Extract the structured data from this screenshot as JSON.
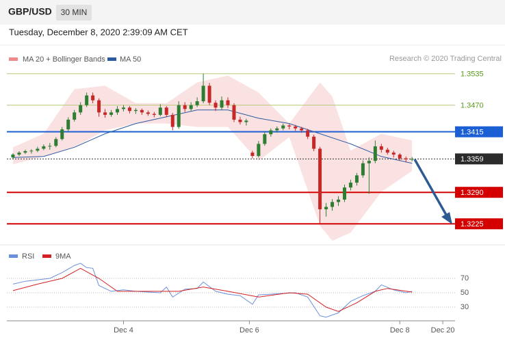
{
  "header": {
    "symbol": "GBP/USD",
    "timeframe": "30 MIN"
  },
  "timestamp": "Tuesday, December 8, 2020 2:39:09 AM CET",
  "credit": "Research © 2020 Trading Central",
  "chart_data": [
    {
      "type": "candlestick",
      "xlim": [
        -1,
        72
      ],
      "ylim": [
        1.319,
        1.356
      ],
      "up_color": "#2e7d32",
      "down_color": "#c62828",
      "candles": [
        [
          1.3362,
          1.3371,
          1.3359,
          1.3368
        ],
        [
          1.3368,
          1.3375,
          1.3365,
          1.3372
        ],
        [
          1.3372,
          1.3378,
          1.3369,
          1.3375
        ],
        [
          1.3375,
          1.3379,
          1.337,
          1.3376
        ],
        [
          1.3376,
          1.3384,
          1.3373,
          1.338
        ],
        [
          1.338,
          1.3389,
          1.3377,
          1.3385
        ],
        [
          1.3385,
          1.3392,
          1.3378,
          1.3386
        ],
        [
          1.3386,
          1.3404,
          1.3383,
          1.34
        ],
        [
          1.34,
          1.3425,
          1.3397,
          1.342
        ],
        [
          1.342,
          1.3445,
          1.3416,
          1.344
        ],
        [
          1.344,
          1.346,
          1.3436,
          1.3455
        ],
        [
          1.3455,
          1.3476,
          1.345,
          1.347
        ],
        [
          1.347,
          1.3496,
          1.3466,
          1.349
        ],
        [
          1.349,
          1.3496,
          1.3474,
          1.348
        ],
        [
          1.348,
          1.3484,
          1.3446,
          1.3455
        ],
        [
          1.3455,
          1.3462,
          1.3444,
          1.345
        ],
        [
          1.345,
          1.346,
          1.3446,
          1.3455
        ],
        [
          1.3455,
          1.3468,
          1.345,
          1.3462
        ],
        [
          1.3462,
          1.347,
          1.3457,
          1.3465
        ],
        [
          1.3465,
          1.3468,
          1.3453,
          1.3458
        ],
        [
          1.3458,
          1.3464,
          1.3452,
          1.346
        ],
        [
          1.346,
          1.3463,
          1.345,
          1.3455
        ],
        [
          1.3455,
          1.3459,
          1.3448,
          1.3452
        ],
        [
          1.3452,
          1.3456,
          1.3445,
          1.345
        ],
        [
          1.345,
          1.3472,
          1.3447,
          1.3465
        ],
        [
          1.3465,
          1.3468,
          1.3445,
          1.345
        ],
        [
          1.345,
          1.3454,
          1.3418,
          1.3425
        ],
        [
          1.3425,
          1.3478,
          1.3421,
          1.347
        ],
        [
          1.347,
          1.3476,
          1.3456,
          1.3462
        ],
        [
          1.3462,
          1.3476,
          1.3458,
          1.347
        ],
        [
          1.347,
          1.3486,
          1.3466,
          1.3478
        ],
        [
          1.3478,
          1.3535,
          1.3474,
          1.351
        ],
        [
          1.351,
          1.3516,
          1.347,
          1.3475
        ],
        [
          1.3475,
          1.348,
          1.3458,
          1.3465
        ],
        [
          1.3465,
          1.3488,
          1.346,
          1.348
        ],
        [
          1.348,
          1.3486,
          1.3464,
          1.347
        ],
        [
          1.347,
          1.3474,
          1.3435,
          1.344
        ],
        [
          1.344,
          1.3446,
          1.343,
          1.3435
        ],
        [
          1.3435,
          1.3442,
          1.3428,
          1.3438
        ],
        [
          1.3372,
          1.3376,
          1.336,
          1.3365
        ],
        [
          1.3365,
          1.3396,
          1.3362,
          1.339
        ],
        [
          1.339,
          1.3414,
          1.3386,
          1.341
        ],
        [
          1.341,
          1.3422,
          1.3405,
          1.3418
        ],
        [
          1.3418,
          1.3426,
          1.3413,
          1.3422
        ],
        [
          1.3422,
          1.3432,
          1.3418,
          1.3428
        ],
        [
          1.3428,
          1.3431,
          1.342,
          1.3426
        ],
        [
          1.3426,
          1.3429,
          1.3417,
          1.3422
        ],
        [
          1.3422,
          1.3425,
          1.3413,
          1.3418
        ],
        [
          1.3418,
          1.3421,
          1.34,
          1.3405
        ],
        [
          1.3405,
          1.3409,
          1.3375,
          1.338
        ],
        [
          1.338,
          1.3384,
          1.3225,
          1.3255
        ],
        [
          1.3255,
          1.3268,
          1.324,
          1.326
        ],
        [
          1.326,
          1.3276,
          1.3252,
          1.327
        ],
        [
          1.327,
          1.3282,
          1.3262,
          1.3275
        ],
        [
          1.3275,
          1.3306,
          1.327,
          1.33
        ],
        [
          1.33,
          1.3316,
          1.3294,
          1.331
        ],
        [
          1.331,
          1.333,
          1.3304,
          1.3325
        ],
        [
          1.3325,
          1.3356,
          1.332,
          1.335
        ],
        [
          1.335,
          1.3362,
          1.3287,
          1.3355
        ],
        [
          1.3355,
          1.3397,
          1.335,
          1.3385
        ],
        [
          1.3385,
          1.339,
          1.3372,
          1.3378
        ],
        [
          1.3378,
          1.3382,
          1.3368,
          1.3372
        ],
        [
          1.3372,
          1.3376,
          1.3362,
          1.3368
        ],
        [
          1.3368,
          1.3371,
          1.3355,
          1.336
        ],
        [
          1.336,
          1.3364,
          1.3352,
          1.3358
        ],
        [
          1.3358,
          1.3363,
          1.3354,
          1.3359
        ]
      ],
      "bands": {
        "name": "MA 20 + Bollinger Bands",
        "color": "#f08a8a",
        "x": [
          0,
          5,
          10,
          15,
          20,
          25,
          30,
          35,
          40,
          45,
          50,
          52,
          55,
          60,
          65
        ],
        "upper": [
          1.3383,
          1.3411,
          1.3503,
          1.351,
          1.3474,
          1.3474,
          1.3517,
          1.3531,
          1.3496,
          1.3432,
          1.3517,
          1.3488,
          1.3376,
          1.3411,
          1.3397
        ],
        "lower": [
          1.3348,
          1.3364,
          1.3383,
          1.3418,
          1.3432,
          1.3432,
          1.3425,
          1.3425,
          1.3355,
          1.3404,
          1.3221,
          1.319,
          1.3207,
          1.3291,
          1.3334
        ]
      },
      "ma50": {
        "name": "MA 50",
        "color": "#2c5aa0",
        "x": [
          0,
          5,
          10,
          15,
          20,
          25,
          30,
          35,
          40,
          45,
          50,
          55,
          60,
          65
        ],
        "values": [
          1.3362,
          1.3364,
          1.3383,
          1.3411,
          1.3432,
          1.3446,
          1.346,
          1.346,
          1.3443,
          1.3432,
          1.3411,
          1.339,
          1.3364,
          1.335
        ]
      },
      "levels": [
        {
          "value": 1.3535,
          "label": "1.3535",
          "color": "#b5c77a",
          "text_color": "#5a9a1a",
          "box": false,
          "dotted": false
        },
        {
          "value": 1.347,
          "label": "1.3470",
          "color": "#b5c77a",
          "text_color": "#5a9a1a",
          "box": false,
          "dotted": false
        },
        {
          "value": 1.3415,
          "label": "1.3415",
          "color": "#1a5fd4",
          "text_color": "#ffffff",
          "box": true,
          "dotted": false
        },
        {
          "value": 1.3359,
          "label": "1.3359",
          "color": "#2b2b2b",
          "text_color": "#ffffff",
          "box": true,
          "dotted": true
        },
        {
          "value": 1.329,
          "label": "1.3290",
          "color": "#d40000",
          "text_color": "#ffffff",
          "box": true,
          "dotted": false
        },
        {
          "value": 1.3225,
          "label": "1.3225",
          "color": "#d40000",
          "text_color": "#ffffff",
          "box": true,
          "dotted": false
        }
      ]
    },
    {
      "type": "line",
      "xlim": [
        -1,
        72
      ],
      "ylim": [
        10,
        110
      ],
      "yticks": [
        70,
        50,
        30
      ],
      "xticks": [
        {
          "value": 18,
          "label": "Dec 4"
        },
        {
          "value": 38.5,
          "label": "Dec 6"
        },
        {
          "value": 63,
          "label": "Dec 8"
        },
        {
          "value": 70,
          "label": "Dec 20"
        }
      ],
      "series": [
        {
          "name": "RSI",
          "color": "#6a8fdc",
          "x": [
            0,
            2,
            4,
            6,
            8,
            10,
            11,
            12,
            13,
            14,
            16,
            18,
            20,
            22,
            24,
            25,
            26,
            28,
            30,
            31,
            33,
            35,
            37,
            39,
            40,
            42,
            44,
            46,
            48,
            50,
            51,
            53,
            55,
            57,
            59,
            60,
            62,
            64,
            65
          ],
          "values": [
            62,
            66,
            68,
            70,
            78,
            88,
            91,
            85,
            84,
            60,
            52,
            54,
            52,
            51,
            50,
            58,
            44,
            55,
            56,
            65,
            52,
            48,
            46,
            34,
            47,
            48,
            49,
            50,
            44,
            18,
            16,
            22,
            38,
            46,
            52,
            61,
            54,
            50,
            52
          ]
        },
        {
          "name": "9MA",
          "color": "#d32020",
          "x": [
            0,
            4,
            8,
            11,
            14,
            17,
            22,
            27,
            31,
            35,
            40,
            45,
            48,
            51,
            53,
            56,
            59,
            61,
            65
          ],
          "values": [
            53,
            62,
            70,
            84,
            70,
            52,
            52,
            52,
            58,
            52,
            44,
            50,
            48,
            30,
            24,
            36,
            52,
            56,
            51
          ]
        }
      ]
    }
  ]
}
